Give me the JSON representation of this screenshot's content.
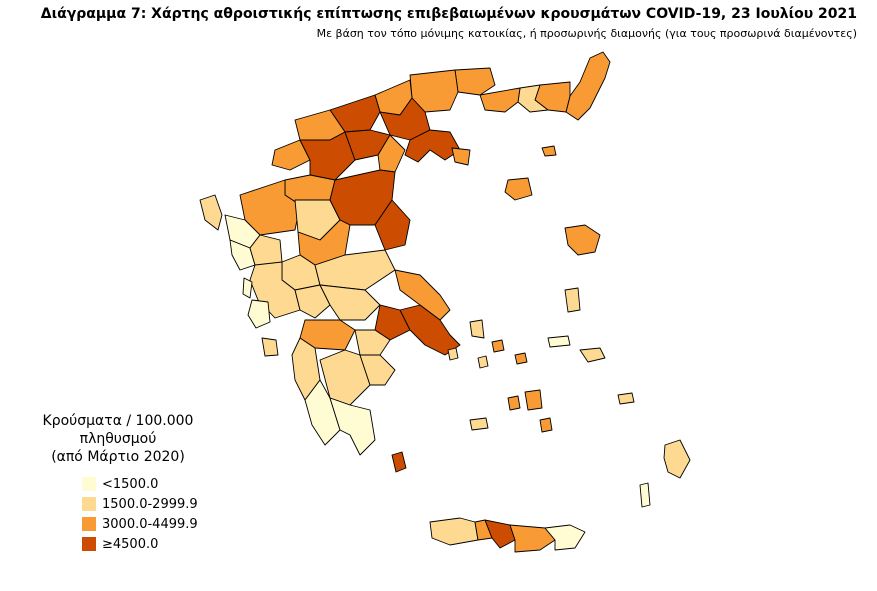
{
  "title": "Διάγραμμα 7: Χάρτης αθροιστικής επίπτωσης επιβεβαιωμένων κρουσμάτων COVID-19, 23 Ιουλίου 2021",
  "subtitle": "Με βάση τον τόπο μόνιμης κατοικίας, ή προσωρινής διαμονής (για τους προσωρινά διαμένοντες)",
  "legend": {
    "title_line1": "Κρούσματα / 100.000 πληθυσμού",
    "title_line2": "(από Μάρτιο 2020)",
    "items": [
      {
        "label": "<1500.0",
        "color": "#FFFBD2"
      },
      {
        "label": "1500.0-2999.9",
        "color": "#FDD991"
      },
      {
        "label": "3000.0-4499.9",
        "color": "#F99B35"
      },
      {
        "label": "≥4500.0",
        "color": "#CC4C02"
      }
    ]
  },
  "map": {
    "border_color": "#000000"
  }
}
